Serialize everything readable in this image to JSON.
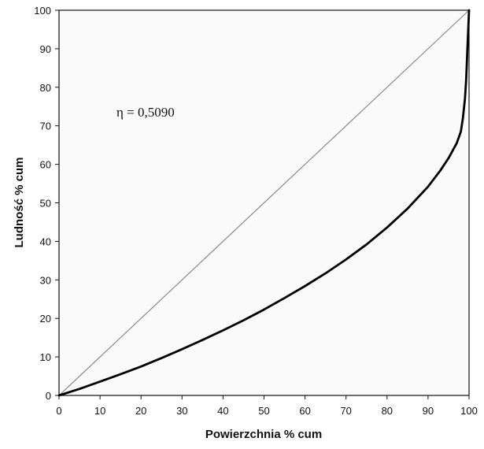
{
  "chart_data": {
    "type": "line",
    "title": "",
    "xlabel": "Powierzchnia % cum",
    "ylabel": "Ludność % cum",
    "xlim": [
      0,
      100
    ],
    "ylim": [
      0,
      100
    ],
    "x_ticks": [
      "0",
      "10",
      "20",
      "30",
      "40",
      "50",
      "60",
      "70",
      "80",
      "90",
      "100"
    ],
    "y_ticks": [
      "0",
      "10",
      "20",
      "30",
      "40",
      "50",
      "60",
      "70",
      "80",
      "90",
      "100"
    ],
    "grid": false,
    "legend": "none",
    "annotation": "η = 0,5090",
    "series": [
      {
        "role": "equality-line",
        "color": "#8a8a8a",
        "x": [
          0,
          100
        ],
        "y": [
          0,
          100
        ]
      },
      {
        "role": "concentration-curve",
        "color": "#000000",
        "x": [
          0,
          5,
          10,
          15,
          20,
          25,
          30,
          35,
          40,
          45,
          50,
          55,
          60,
          65,
          70,
          75,
          80,
          85,
          90,
          93,
          95,
          97,
          98,
          98.5,
          99,
          99.3,
          99.6,
          100
        ],
        "y": [
          0,
          1.7,
          3.6,
          5.5,
          7.5,
          9.7,
          12.0,
          14.4,
          16.9,
          19.5,
          22.3,
          25.3,
          28.4,
          31.7,
          35.3,
          39.2,
          43.6,
          48.5,
          54.2,
          58.4,
          61.6,
          65.5,
          68.5,
          72,
          77,
          82,
          90,
          100
        ]
      }
    ]
  }
}
